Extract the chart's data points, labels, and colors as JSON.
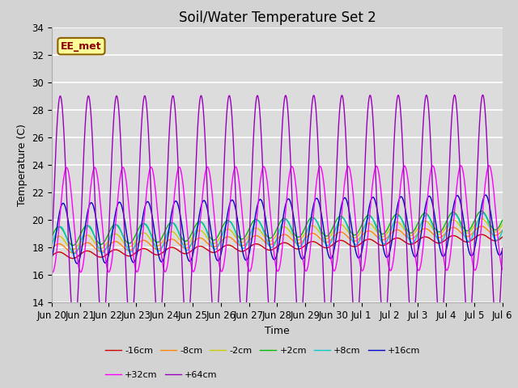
{
  "title": "Soil/Water Temperature Set 2",
  "xlabel": "Time",
  "ylabel": "Temperature (C)",
  "ylim": [
    14,
    34
  ],
  "xlim": [
    0,
    16
  ],
  "bg_color": "#dcdcdc",
  "grid_color": "#ffffff",
  "fig_bg_color": "#d3d3d3",
  "annotation_text": "EE_met",
  "annotation_bg": "#ffff99",
  "annotation_border": "#8b6000",
  "x_tick_labels": [
    "Jun 20",
    "Jun 21",
    "Jun 22",
    "Jun 23",
    "Jun 24",
    "Jun 25",
    "Jun 26",
    "Jun 27",
    "Jun 28",
    "Jun 29",
    "Jun 30",
    "Jul 1",
    "Jul 2",
    "Jul 3",
    "Jul 4",
    "Jul 5",
    "Jul 6"
  ],
  "series": [
    {
      "label": "-16cm",
      "color": "#cc0000",
      "base": 17.4,
      "trend": 0.085,
      "amp": 0.25,
      "phase_off": 0.0
    },
    {
      "label": "-8cm",
      "color": "#ff8800",
      "base": 17.9,
      "trend": 0.085,
      "amp": 0.35,
      "phase_off": 0.0
    },
    {
      "label": "-2cm",
      "color": "#cccc00",
      "base": 18.3,
      "trend": 0.085,
      "amp": 0.5,
      "phase_off": 0.0
    },
    {
      "label": "+2cm",
      "color": "#00bb00",
      "base": 18.8,
      "trend": 0.075,
      "amp": 0.7,
      "phase_off": 0.0
    },
    {
      "label": "+8cm",
      "color": "#00cccc",
      "base": 18.5,
      "trend": 0.065,
      "amp": 1.0,
      "phase_off": 0.1
    },
    {
      "label": "+16cm",
      "color": "#0000cc",
      "base": 19.0,
      "trend": 0.04,
      "amp": 2.2,
      "phase_off": 0.3
    },
    {
      "label": "+32cm",
      "color": "#ff00ff",
      "base": 20.0,
      "trend": 0.01,
      "amp": 3.8,
      "phase_off": 0.55
    },
    {
      "label": "+64cm",
      "color": "#9900bb",
      "base": 20.5,
      "trend": 0.005,
      "amp": 8.5,
      "phase_off": 0.1
    }
  ],
  "title_fontsize": 12,
  "axis_fontsize": 9,
  "tick_fontsize": 8.5
}
